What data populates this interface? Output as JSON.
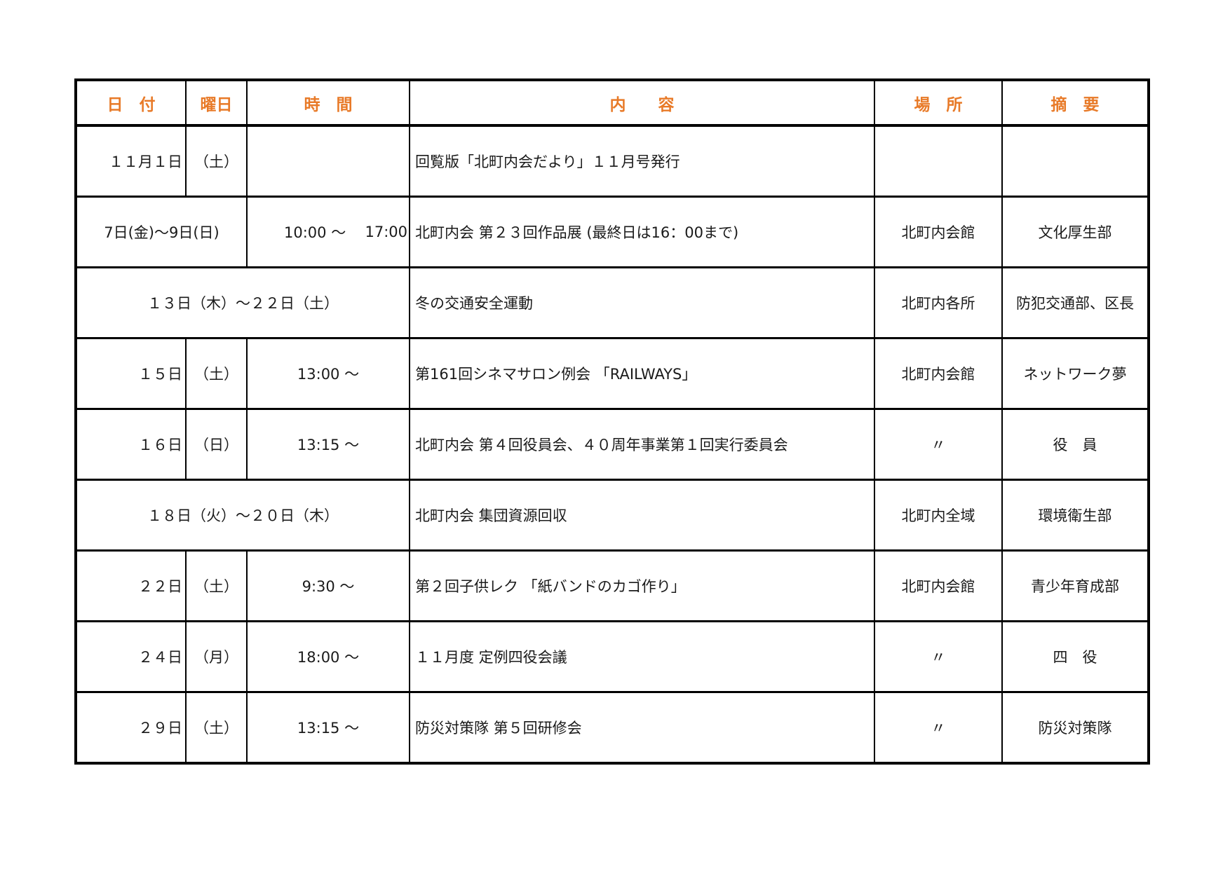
{
  "document": {
    "type": "community-newsletter schedule table",
    "month": "11月"
  },
  "colors": {
    "header_text": "#e87a28",
    "border": "#000000",
    "background": "#ffffff",
    "body_text": "#1a1a1a"
  },
  "header": {
    "date": "日　付",
    "day": "曜日",
    "time": "時　間",
    "content": "内　　容",
    "place": "場　所",
    "note": "摘　要"
  },
  "rows": [
    {
      "date": "１１月１日",
      "day": "（土）",
      "time": "",
      "content": "回覧版「北町内会だより」１１月号発行",
      "place": "",
      "note": ""
    },
    {
      "date_range": "7日(金)～9日(日)",
      "time_start": "10:00 ～",
      "time_end": "17:00",
      "content": "北町内会 第２３回作品展 (最終日は16：00まで)",
      "place": "北町内会館",
      "note": "文化厚生部"
    },
    {
      "date_range": "１３日（木）～２２日（土）",
      "content": "冬の交通安全運動",
      "place": "北町内各所",
      "note": "防犯交通部、区長"
    },
    {
      "date": "１５日",
      "day": "（土）",
      "time": "13:00 ～",
      "content": "第161回シネマサロン例会 「RAILWAYS」",
      "place": "北町内会館",
      "note": "ネットワーク夢"
    },
    {
      "date": "１６日",
      "day": "（日）",
      "time": "13:15 ～",
      "content": "北町内会 第４回役員会、４０周年事業第１回実行委員会",
      "place": "〃",
      "note": "役　員"
    },
    {
      "date_range": "１８日（火）～２０日（木）",
      "content": "北町内会 集団資源回収",
      "place": "北町内全域",
      "note": "環境衛生部"
    },
    {
      "date": "２２日",
      "day": "（土）",
      "time": "9:30 ～",
      "content": "第２回子供レク 「紙バンドのカゴ作り」",
      "place": "北町内会館",
      "note": "青少年育成部"
    },
    {
      "date": "２４日",
      "day": "（月）",
      "time": "18:00 ～",
      "content": "１１月度 定例四役会議",
      "place": "〃",
      "note": "四　役"
    },
    {
      "date": "２９日",
      "day": "（土）",
      "time": "13:15 ～",
      "content": "防災対策隊 第５回研修会",
      "place": "〃",
      "note": "防災対策隊"
    }
  ]
}
